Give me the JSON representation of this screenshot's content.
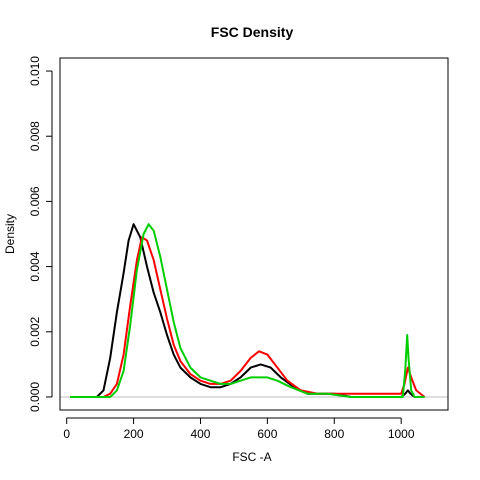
{
  "chart_data": {
    "type": "line",
    "title": "FSC Density",
    "xlabel": "FSC -A",
    "ylabel": "Density",
    "xlim": [
      -20,
      1140
    ],
    "ylim": [
      -0.0004,
      0.0104
    ],
    "x_ticks": [
      0,
      200,
      400,
      600,
      800,
      1000
    ],
    "x_tick_labels": [
      "0",
      "200",
      "400",
      "600",
      "800",
      "1000"
    ],
    "y_ticks": [
      0.0,
      0.002,
      0.004,
      0.006,
      0.008,
      0.01
    ],
    "y_tick_labels": [
      "0.000",
      "0.002",
      "0.004",
      "0.006",
      "0.008",
      "0.010"
    ],
    "baseline_y": 0,
    "baseline_color": "#bebebe",
    "grid": false,
    "series": [
      {
        "color": "#000000",
        "points": [
          [
            10,
            0
          ],
          [
            90,
            0
          ],
          [
            110,
            0.0002
          ],
          [
            130,
            0.0012
          ],
          [
            150,
            0.0026
          ],
          [
            170,
            0.0038
          ],
          [
            185,
            0.0048
          ],
          [
            200,
            0.0053
          ],
          [
            220,
            0.0049
          ],
          [
            240,
            0.004
          ],
          [
            260,
            0.0032
          ],
          [
            280,
            0.0026
          ],
          [
            300,
            0.0019
          ],
          [
            320,
            0.0013
          ],
          [
            340,
            0.0009
          ],
          [
            370,
            0.0006
          ],
          [
            400,
            0.0004
          ],
          [
            430,
            0.0003
          ],
          [
            460,
            0.0003
          ],
          [
            490,
            0.0004
          ],
          [
            520,
            0.0006
          ],
          [
            550,
            0.0009
          ],
          [
            580,
            0.001
          ],
          [
            610,
            0.0009
          ],
          [
            640,
            0.0006
          ],
          [
            680,
            0.0003
          ],
          [
            720,
            0.0001
          ],
          [
            760,
            0.0001
          ],
          [
            800,
            0.0001
          ],
          [
            850,
            0
          ],
          [
            900,
            0
          ],
          [
            950,
            0
          ],
          [
            1000,
            0
          ],
          [
            1012,
            0.0001
          ],
          [
            1020,
            0.0002
          ],
          [
            1028,
            0.0001
          ],
          [
            1040,
            0
          ],
          [
            1070,
            0
          ]
        ]
      },
      {
        "color": "#ff0000",
        "points": [
          [
            10,
            0
          ],
          [
            110,
            0
          ],
          [
            130,
            0.0001
          ],
          [
            150,
            0.0004
          ],
          [
            170,
            0.0013
          ],
          [
            190,
            0.0028
          ],
          [
            210,
            0.0042
          ],
          [
            225,
            0.0049
          ],
          [
            240,
            0.0048
          ],
          [
            260,
            0.0042
          ],
          [
            280,
            0.0033
          ],
          [
            300,
            0.0024
          ],
          [
            320,
            0.0016
          ],
          [
            340,
            0.0011
          ],
          [
            370,
            0.0007
          ],
          [
            400,
            0.0005
          ],
          [
            430,
            0.0004
          ],
          [
            460,
            0.0004
          ],
          [
            490,
            0.0005
          ],
          [
            520,
            0.0008
          ],
          [
            550,
            0.0012
          ],
          [
            575,
            0.0014
          ],
          [
            600,
            0.0013
          ],
          [
            630,
            0.0009
          ],
          [
            660,
            0.0005
          ],
          [
            700,
            0.0002
          ],
          [
            750,
            0.0001
          ],
          [
            800,
            0.0001
          ],
          [
            900,
            0.0001
          ],
          [
            980,
            0.0001
          ],
          [
            1000,
            0.0001
          ],
          [
            1010,
            0.0004
          ],
          [
            1020,
            0.0009
          ],
          [
            1030,
            0.0006
          ],
          [
            1045,
            0.0002
          ],
          [
            1070,
            0
          ]
        ]
      },
      {
        "color": "#00cd00",
        "points": [
          [
            10,
            0
          ],
          [
            130,
            0
          ],
          [
            150,
            0.0002
          ],
          [
            170,
            0.0008
          ],
          [
            190,
            0.0022
          ],
          [
            210,
            0.0039
          ],
          [
            230,
            0.005
          ],
          [
            245,
            0.0053
          ],
          [
            260,
            0.0051
          ],
          [
            280,
            0.0043
          ],
          [
            300,
            0.0033
          ],
          [
            320,
            0.0023
          ],
          [
            340,
            0.0015
          ],
          [
            370,
            0.0009
          ],
          [
            400,
            0.0006
          ],
          [
            430,
            0.0005
          ],
          [
            460,
            0.0004
          ],
          [
            490,
            0.0004
          ],
          [
            520,
            0.0005
          ],
          [
            550,
            0.0006
          ],
          [
            575,
            0.0006
          ],
          [
            600,
            0.0006
          ],
          [
            630,
            0.0005
          ],
          [
            670,
            0.0003
          ],
          [
            720,
            0.0001
          ],
          [
            780,
            0.0001
          ],
          [
            850,
            0
          ],
          [
            950,
            0
          ],
          [
            1005,
            0
          ],
          [
            1012,
            0.0008
          ],
          [
            1018,
            0.0019
          ],
          [
            1022,
            0.0012
          ],
          [
            1030,
            0.0002
          ],
          [
            1040,
            0
          ],
          [
            1070,
            0
          ]
        ]
      }
    ]
  }
}
